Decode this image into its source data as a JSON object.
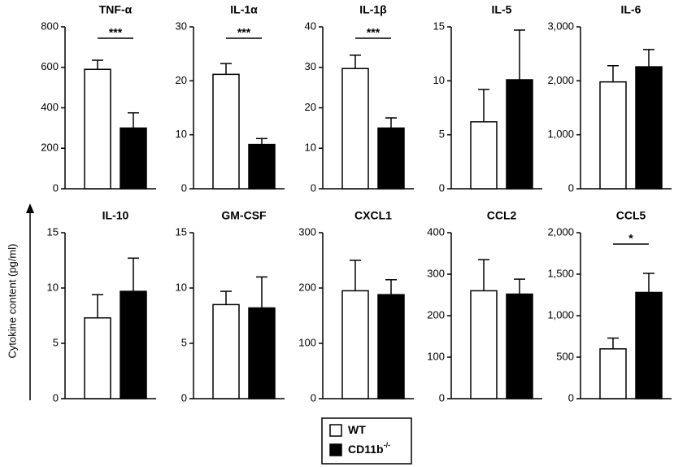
{
  "y_label": "Cytokine content (pg/ml)",
  "legend": [
    {
      "name": "WT",
      "color": "#ffffff"
    },
    {
      "name": "CD11b",
      "sup": "-/-",
      "color": "#000000"
    }
  ],
  "chart_data": [
    {
      "type": "bar",
      "title": "TNF-α",
      "values": [
        590,
        300
      ],
      "errors": [
        45,
        75
      ],
      "ylim": [
        0,
        800
      ],
      "yticks": [
        0,
        200,
        400,
        600,
        800
      ],
      "annotation": "***"
    },
    {
      "type": "bar",
      "title": "IL-1α",
      "values": [
        21.2,
        8.2
      ],
      "errors": [
        2,
        1.1
      ],
      "ylim": [
        0,
        30
      ],
      "yticks": [
        0,
        10,
        20,
        30
      ],
      "annotation": "***"
    },
    {
      "type": "bar",
      "title": "IL-1β",
      "values": [
        29.7,
        15
      ],
      "errors": [
        3.3,
        2.5
      ],
      "ylim": [
        0,
        40
      ],
      "yticks": [
        0,
        10,
        20,
        30,
        40
      ],
      "annotation": "***"
    },
    {
      "type": "bar",
      "title": "IL-5",
      "values": [
        6.2,
        10.1
      ],
      "errors": [
        3,
        4.6
      ],
      "ylim": [
        0,
        15
      ],
      "yticks": [
        0,
        5,
        10,
        15
      ]
    },
    {
      "type": "bar",
      "title": "IL-6",
      "values": [
        1980,
        2260
      ],
      "errors": [
        300,
        320
      ],
      "ylim": [
        0,
        3000
      ],
      "yticks": [
        0,
        {
          "value": 1000,
          "label": "1,000"
        },
        {
          "value": 2000,
          "label": "2,000"
        },
        {
          "value": 3000,
          "label": "3,000"
        }
      ]
    },
    {
      "type": "bar",
      "title": "IL-10",
      "values": [
        7.3,
        9.7
      ],
      "errors": [
        2.1,
        3
      ],
      "ylim": [
        0,
        15
      ],
      "yticks": [
        0,
        5,
        10,
        15
      ]
    },
    {
      "type": "bar",
      "title": "GM-CSF",
      "values": [
        8.5,
        8.2
      ],
      "errors": [
        1.2,
        2.8
      ],
      "ylim": [
        0,
        15
      ],
      "yticks": [
        0,
        5,
        10,
        15
      ]
    },
    {
      "type": "bar",
      "title": "CXCL1",
      "values": [
        195,
        188
      ],
      "errors": [
        55,
        27
      ],
      "ylim": [
        0,
        300
      ],
      "yticks": [
        0,
        100,
        200,
        300
      ]
    },
    {
      "type": "bar",
      "title": "CCL2",
      "values": [
        260,
        252
      ],
      "errors": [
        75,
        36
      ],
      "ylim": [
        0,
        400
      ],
      "yticks": [
        0,
        100,
        200,
        300,
        400
      ]
    },
    {
      "type": "bar",
      "title": "CCL5",
      "values": [
        600,
        1280
      ],
      "errors": [
        130,
        230
      ],
      "ylim": [
        0,
        2000
      ],
      "yticks": [
        0,
        500,
        {
          "value": 1000,
          "label": "1,000"
        },
        {
          "value": 1500,
          "label": "1,500"
        },
        {
          "value": 2000,
          "label": "2,000"
        }
      ],
      "annotation": "*"
    }
  ]
}
